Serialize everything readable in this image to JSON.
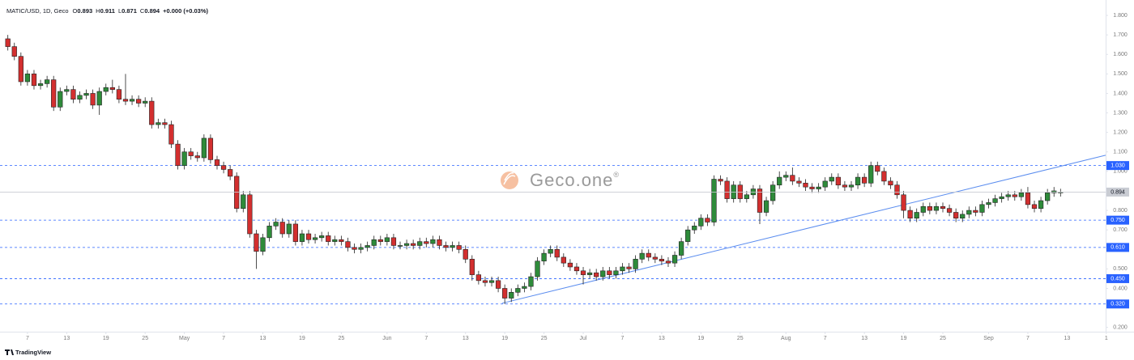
{
  "header": {
    "symbol": "MATIC/USD, 1D, Geco",
    "o": "O",
    "h": "H",
    "l": "L",
    "c": "C",
    "change": "+0.000 (+0.03%)"
  },
  "chart_data": {
    "type": "candlestick",
    "x": [
      94,
      95,
      96,
      97,
      98,
      99,
      100,
      101,
      102,
      103,
      104,
      105,
      106,
      107,
      108,
      109,
      110,
      111,
      112,
      113,
      114,
      115,
      116,
      117,
      118,
      119,
      120,
      121,
      122,
      123,
      124,
      125,
      126,
      127,
      128,
      129,
      130,
      131,
      132,
      133,
      134,
      135,
      136,
      137,
      138,
      139,
      140,
      141,
      142,
      143,
      144,
      145,
      146,
      147,
      148,
      149,
      150,
      151,
      152,
      153,
      154,
      155,
      156,
      157,
      158,
      159,
      160,
      161,
      162,
      163,
      164,
      165,
      166,
      167,
      168,
      169,
      170,
      171,
      172,
      173,
      174,
      175,
      176,
      177,
      178,
      179,
      180,
      181,
      182,
      183,
      184,
      185,
      186,
      187,
      188,
      189,
      190,
      191,
      192,
      193,
      194,
      195,
      196,
      197,
      198,
      199,
      200,
      201,
      202,
      203,
      204,
      205,
      206,
      207,
      208,
      209,
      210,
      211,
      212,
      213,
      214,
      215,
      216,
      217,
      218,
      219,
      220,
      221,
      222,
      223,
      224,
      225,
      226,
      227,
      228,
      229,
      230,
      231,
      232,
      233,
      234,
      235,
      236,
      237,
      238,
      239,
      240,
      241,
      242,
      243,
      244,
      245,
      246,
      247,
      248,
      249,
      250,
      251,
      252,
      253,
      254,
      255
    ],
    "open": [
      1.68,
      1.64,
      1.59,
      1.46,
      1.5,
      1.44,
      1.45,
      1.47,
      1.33,
      1.41,
      1.42,
      1.37,
      1.39,
      1.4,
      1.34,
      1.41,
      1.43,
      1.42,
      1.37,
      1.36,
      1.37,
      1.35,
      1.36,
      1.24,
      1.25,
      1.24,
      1.14,
      1.03,
      1.1,
      1.08,
      1.07,
      1.17,
      1.06,
      1.03,
      1.01,
      0.975,
      0.81,
      0.88,
      0.68,
      0.59,
      0.66,
      0.72,
      0.74,
      0.68,
      0.73,
      0.64,
      0.68,
      0.65,
      0.66,
      0.67,
      0.64,
      0.65,
      0.64,
      0.61,
      0.6,
      0.61,
      0.62,
      0.65,
      0.64,
      0.66,
      0.62,
      0.62,
      0.63,
      0.62,
      0.64,
      0.63,
      0.65,
      0.62,
      0.61,
      0.62,
      0.6,
      0.55,
      0.47,
      0.44,
      0.43,
      0.44,
      0.4,
      0.35,
      0.38,
      0.4,
      0.41,
      0.46,
      0.54,
      0.58,
      0.6,
      0.56,
      0.53,
      0.51,
      0.49,
      0.47,
      0.48,
      0.46,
      0.49,
      0.47,
      0.49,
      0.51,
      0.5,
      0.55,
      0.58,
      0.56,
      0.55,
      0.54,
      0.53,
      0.57,
      0.64,
      0.7,
      0.72,
      0.76,
      0.74,
      0.96,
      0.95,
      0.86,
      0.93,
      0.86,
      0.88,
      0.91,
      0.79,
      0.85,
      0.93,
      0.97,
      0.98,
      0.95,
      0.94,
      0.92,
      0.91,
      0.92,
      0.95,
      0.97,
      0.93,
      0.92,
      0.93,
      0.97,
      0.94,
      1.03,
      1.0,
      0.95,
      0.93,
      0.88,
      0.8,
      0.76,
      0.79,
      0.82,
      0.8,
      0.82,
      0.81,
      0.79,
      0.76,
      0.78,
      0.8,
      0.79,
      0.83,
      0.84,
      0.86,
      0.87,
      0.88,
      0.87,
      0.89,
      0.83,
      0.81,
      0.85,
      0.89,
      0.893
    ],
    "high": [
      1.7,
      1.66,
      1.61,
      1.52,
      1.52,
      1.47,
      1.49,
      1.49,
      1.43,
      1.44,
      1.44,
      1.41,
      1.42,
      1.42,
      1.43,
      1.45,
      1.47,
      1.44,
      1.5,
      1.39,
      1.39,
      1.38,
      1.38,
      1.27,
      1.27,
      1.26,
      1.16,
      1.12,
      1.12,
      1.1,
      1.19,
      1.19,
      1.08,
      1.05,
      1.03,
      0.995,
      0.9,
      0.9,
      0.7,
      0.68,
      0.74,
      0.76,
      0.76,
      0.75,
      0.75,
      0.7,
      0.7,
      0.68,
      0.69,
      0.69,
      0.67,
      0.67,
      0.66,
      0.63,
      0.63,
      0.64,
      0.67,
      0.67,
      0.68,
      0.68,
      0.64,
      0.65,
      0.65,
      0.66,
      0.66,
      0.67,
      0.67,
      0.64,
      0.64,
      0.64,
      0.62,
      0.57,
      0.49,
      0.46,
      0.46,
      0.46,
      0.42,
      0.4,
      0.42,
      0.43,
      0.48,
      0.56,
      0.6,
      0.62,
      0.62,
      0.58,
      0.55,
      0.53,
      0.51,
      0.5,
      0.5,
      0.51,
      0.51,
      0.51,
      0.53,
      0.53,
      0.57,
      0.6,
      0.6,
      0.58,
      0.57,
      0.56,
      0.59,
      0.66,
      0.72,
      0.74,
      0.78,
      0.78,
      0.98,
      0.98,
      0.97,
      0.95,
      0.95,
      0.9,
      0.93,
      0.93,
      0.87,
      0.95,
      1.0,
      1.0,
      1.02,
      0.97,
      0.96,
      0.94,
      0.94,
      0.97,
      0.99,
      0.99,
      0.95,
      0.95,
      0.99,
      0.99,
      1.05,
      1.05,
      1.02,
      0.97,
      0.95,
      0.9,
      0.82,
      0.81,
      0.84,
      0.84,
      0.84,
      0.84,
      0.83,
      0.81,
      0.8,
      0.82,
      0.82,
      0.85,
      0.86,
      0.88,
      0.89,
      0.9,
      0.9,
      0.91,
      0.92,
      0.85,
      0.87,
      0.91,
      0.92,
      0.911
    ],
    "low": [
      1.62,
      1.57,
      1.44,
      1.44,
      1.42,
      1.42,
      1.43,
      1.31,
      1.31,
      1.39,
      1.35,
      1.35,
      1.37,
      1.32,
      1.29,
      1.39,
      1.4,
      1.35,
      1.34,
      1.34,
      1.33,
      1.33,
      1.22,
      1.22,
      1.22,
      1.12,
      1.01,
      1.01,
      1.06,
      1.05,
      1.05,
      1.04,
      1.01,
      0.99,
      0.955,
      0.79,
      0.79,
      0.66,
      0.5,
      0.57,
      0.64,
      0.7,
      0.66,
      0.66,
      0.62,
      0.62,
      0.63,
      0.63,
      0.64,
      0.62,
      0.62,
      0.62,
      0.59,
      0.58,
      0.58,
      0.59,
      0.6,
      0.62,
      0.62,
      0.6,
      0.6,
      0.6,
      0.6,
      0.6,
      0.61,
      0.61,
      0.6,
      0.59,
      0.59,
      0.58,
      0.53,
      0.44,
      0.42,
      0.41,
      0.41,
      0.38,
      0.32,
      0.33,
      0.36,
      0.38,
      0.39,
      0.44,
      0.52,
      0.56,
      0.54,
      0.51,
      0.49,
      0.47,
      0.42,
      0.45,
      0.44,
      0.44,
      0.45,
      0.45,
      0.47,
      0.48,
      0.48,
      0.53,
      0.54,
      0.53,
      0.52,
      0.51,
      0.51,
      0.55,
      0.62,
      0.68,
      0.7,
      0.72,
      0.72,
      0.93,
      0.84,
      0.84,
      0.84,
      0.84,
      0.86,
      0.73,
      0.77,
      0.83,
      0.91,
      0.95,
      0.93,
      0.92,
      0.9,
      0.89,
      0.89,
      0.9,
      0.93,
      0.91,
      0.9,
      0.9,
      0.91,
      0.92,
      0.92,
      0.98,
      0.93,
      0.91,
      0.86,
      0.76,
      0.74,
      0.74,
      0.77,
      0.78,
      0.78,
      0.79,
      0.77,
      0.74,
      0.74,
      0.76,
      0.77,
      0.77,
      0.81,
      0.82,
      0.84,
      0.85,
      0.85,
      0.85,
      0.81,
      0.79,
      0.79,
      0.83,
      0.87,
      0.871
    ],
    "close": [
      1.64,
      1.59,
      1.46,
      1.5,
      1.44,
      1.45,
      1.47,
      1.33,
      1.41,
      1.42,
      1.37,
      1.39,
      1.4,
      1.34,
      1.41,
      1.43,
      1.42,
      1.37,
      1.36,
      1.37,
      1.35,
      1.36,
      1.24,
      1.25,
      1.24,
      1.14,
      1.03,
      1.1,
      1.08,
      1.07,
      1.17,
      1.06,
      1.03,
      1.01,
      0.975,
      0.81,
      0.88,
      0.68,
      0.59,
      0.66,
      0.72,
      0.74,
      0.68,
      0.73,
      0.64,
      0.68,
      0.65,
      0.66,
      0.67,
      0.64,
      0.65,
      0.64,
      0.61,
      0.6,
      0.61,
      0.62,
      0.65,
      0.64,
      0.66,
      0.62,
      0.62,
      0.63,
      0.62,
      0.64,
      0.63,
      0.65,
      0.62,
      0.61,
      0.62,
      0.6,
      0.55,
      0.47,
      0.44,
      0.43,
      0.44,
      0.4,
      0.35,
      0.38,
      0.4,
      0.41,
      0.46,
      0.54,
      0.58,
      0.6,
      0.56,
      0.53,
      0.51,
      0.49,
      0.47,
      0.48,
      0.46,
      0.49,
      0.47,
      0.49,
      0.51,
      0.5,
      0.55,
      0.58,
      0.56,
      0.55,
      0.54,
      0.53,
      0.57,
      0.64,
      0.7,
      0.72,
      0.76,
      0.74,
      0.96,
      0.95,
      0.86,
      0.93,
      0.86,
      0.88,
      0.91,
      0.79,
      0.85,
      0.93,
      0.97,
      0.98,
      0.95,
      0.94,
      0.92,
      0.91,
      0.92,
      0.95,
      0.97,
      0.93,
      0.92,
      0.93,
      0.97,
      0.94,
      1.03,
      1.0,
      0.95,
      0.93,
      0.88,
      0.8,
      0.76,
      0.79,
      0.82,
      0.8,
      0.82,
      0.81,
      0.79,
      0.76,
      0.78,
      0.8,
      0.79,
      0.83,
      0.84,
      0.86,
      0.87,
      0.88,
      0.87,
      0.89,
      0.83,
      0.81,
      0.85,
      0.89,
      0.9,
      0.894
    ],
    "up_color": "#2e8b3a",
    "down_color": "#d32f2f",
    "outline_color": "#222222",
    "xlim": [
      92.8,
      261.9
    ],
    "xticks": [
      {
        "value": 97,
        "label": "7"
      },
      {
        "value": 103,
        "label": "13"
      },
      {
        "value": 109,
        "label": "19"
      },
      {
        "value": 115,
        "label": "25"
      },
      {
        "value": 121,
        "label": "May"
      },
      {
        "value": 127,
        "label": "7"
      },
      {
        "value": 133,
        "label": "13"
      },
      {
        "value": 139,
        "label": "19"
      },
      {
        "value": 145,
        "label": "25"
      },
      {
        "value": 152,
        "label": "Jun"
      },
      {
        "value": 158,
        "label": "7"
      },
      {
        "value": 164,
        "label": "13"
      },
      {
        "value": 170,
        "label": "19"
      },
      {
        "value": 176,
        "label": "25"
      },
      {
        "value": 182,
        "label": "Jul"
      },
      {
        "value": 188,
        "label": "7"
      },
      {
        "value": 194,
        "label": "13"
      },
      {
        "value": 200,
        "label": "19"
      },
      {
        "value": 206,
        "label": "25"
      },
      {
        "value": 213,
        "label": "Aug"
      },
      {
        "value": 219,
        "label": "7"
      },
      {
        "value": 225,
        "label": "13"
      },
      {
        "value": 231,
        "label": "19"
      },
      {
        "value": 237,
        "label": "25"
      },
      {
        "value": 244,
        "label": "Sep"
      },
      {
        "value": 250,
        "label": "7"
      },
      {
        "value": 256,
        "label": "13"
      },
      {
        "value": 262,
        "label": "1"
      }
    ],
    "ylim": [
      0.178,
      1.879
    ],
    "yticks": [
      {
        "value": 0.2,
        "label": "0.200"
      },
      {
        "value": 0.4,
        "label": "0.400"
      },
      {
        "value": 0.5,
        "label": "0.500"
      },
      {
        "value": 0.7,
        "label": "0.700"
      },
      {
        "value": 0.8,
        "label": "0.800"
      },
      {
        "value": 1.0,
        "label": "1.000"
      },
      {
        "value": 1.1,
        "label": "1.100"
      },
      {
        "value": 1.2,
        "label": "1.200"
      },
      {
        "value": 1.3,
        "label": "1.300"
      },
      {
        "value": 1.4,
        "label": "1.400"
      },
      {
        "value": 1.5,
        "label": "1.500"
      },
      {
        "value": 1.6,
        "label": "1.600"
      },
      {
        "value": 1.7,
        "label": "1.700"
      },
      {
        "value": 1.8,
        "label": "1.800"
      }
    ],
    "levels": [
      {
        "value": 1.03,
        "label": "1.030"
      },
      {
        "value": 0.75,
        "label": "0.750"
      },
      {
        "value": 0.61,
        "label": "0.610"
      },
      {
        "value": 0.45,
        "label": "0.450"
      },
      {
        "value": 0.32,
        "label": "0.320"
      }
    ],
    "level_color": "#2962ff",
    "trendline": {
      "x": [
        169.6,
        261.9
      ],
      "y": [
        0.324,
        1.083
      ],
      "color": "#5b8def"
    },
    "watermark": "Geco.one",
    "watermark_mark": "®"
  },
  "footer": {
    "brand": "TradingView"
  }
}
